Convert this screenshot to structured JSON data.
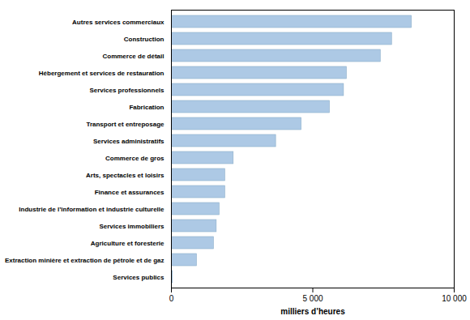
{
  "chart_data": {
    "type": "bar",
    "orientation": "horizontal",
    "categories": [
      "Autres services commerciaux",
      "Construction",
      "Commerce de détail",
      "Hébergement et services de restauration",
      "Services professionnels",
      "Fabrication",
      "Transport et entreposage",
      "Services administratifs",
      "Commerce de gros",
      "Arts, spectacles et loisirs",
      "Finance et assurances",
      "Industrie de l’information et industrie culturelle",
      "Services immobiliers",
      "Agriculture et foresterie",
      "Extraction minière et extraction de pétrole et de gaz",
      "Services publics"
    ],
    "values": [
      8500,
      7800,
      7400,
      6200,
      6100,
      5600,
      4600,
      3700,
      2200,
      1900,
      1900,
      1700,
      1600,
      1500,
      900,
      50
    ],
    "color": "#adc9e5",
    "xlim": [
      0,
      10000
    ],
    "xticks": [
      0,
      {
        "value": 5000,
        "label": "5 000"
      },
      {
        "value": 10000,
        "label": "10 000"
      }
    ],
    "xlabel": "milliers d’heures",
    "grid": false
  }
}
